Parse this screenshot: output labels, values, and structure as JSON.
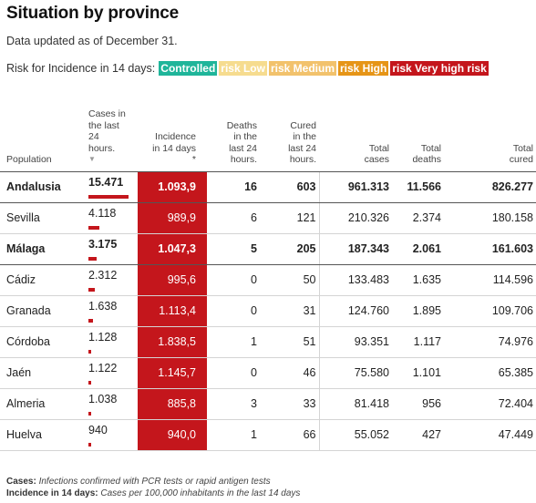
{
  "title": "Situation by province",
  "subtitle": "Data updated as of December 31.",
  "risk": {
    "label": "Risk for Incidence in 14 days:",
    "levels": [
      {
        "label": "Controlled",
        "color": "#1fb59a"
      },
      {
        "label": "risk Low",
        "color": "#f6dc8f"
      },
      {
        "label": "risk Medium",
        "color": "#f2c26c"
      },
      {
        "label": "risk High",
        "color": "#e69517"
      },
      {
        "label": "risk Very high risk",
        "color": "#c4161c"
      }
    ]
  },
  "headers": {
    "population": "Population",
    "cases": [
      "Cases in",
      "the last",
      "24",
      "hours."
    ],
    "cases_sort": "▼",
    "incidence": [
      "Incidence",
      "in 14 days"
    ],
    "incidence_star": "*",
    "deaths": [
      "Deaths",
      "in the",
      "last 24",
      "hours."
    ],
    "cured": [
      "Cured",
      "in the",
      "last 24",
      "hours."
    ],
    "total_cases": [
      "Total",
      "cases"
    ],
    "total_deaths": [
      "Total",
      "deaths"
    ],
    "total_cured": [
      "Total",
      "cured"
    ]
  },
  "accent_color": "#c4161c",
  "rows": [
    {
      "name": "Andalusia",
      "cases": "15.471",
      "cases_value": 15471,
      "incidence": "1.093,9",
      "deaths": "16",
      "cured": "603",
      "total_cases": "961.313",
      "total_deaths": "11.566",
      "total_cured": "826.277",
      "bold": true
    },
    {
      "name": "Sevilla",
      "cases": "4.118",
      "cases_value": 4118,
      "incidence": "989,9",
      "deaths": "6",
      "cured": "121",
      "total_cases": "210.326",
      "total_deaths": "2.374",
      "total_cured": "180.158",
      "bold": false
    },
    {
      "name": "Málaga",
      "cases": "3.175",
      "cases_value": 3175,
      "incidence": "1.047,3",
      "deaths": "5",
      "cured": "205",
      "total_cases": "187.343",
      "total_deaths": "2.061",
      "total_cured": "161.603",
      "bold": true
    },
    {
      "name": "Cádiz",
      "cases": "2.312",
      "cases_value": 2312,
      "incidence": "995,6",
      "deaths": "0",
      "cured": "50",
      "total_cases": "133.483",
      "total_deaths": "1.635",
      "total_cured": "114.596",
      "bold": false
    },
    {
      "name": "Granada",
      "cases": "1.638",
      "cases_value": 1638,
      "incidence": "1.113,4",
      "deaths": "0",
      "cured": "31",
      "total_cases": "124.760",
      "total_deaths": "1.895",
      "total_cured": "109.706",
      "bold": false
    },
    {
      "name": "Córdoba",
      "cases": "1.128",
      "cases_value": 1128,
      "incidence": "1.838,5",
      "deaths": "1",
      "cured": "51",
      "total_cases": "93.351",
      "total_deaths": "1.117",
      "total_cured": "74.976",
      "bold": false
    },
    {
      "name": "Jaén",
      "cases": "1.122",
      "cases_value": 1122,
      "incidence": "1.145,7",
      "deaths": "0",
      "cured": "46",
      "total_cases": "75.580",
      "total_deaths": "1.101",
      "total_cured": "65.385",
      "bold": false
    },
    {
      "name": "Almeria",
      "cases": "1.038",
      "cases_value": 1038,
      "incidence": "885,8",
      "deaths": "3",
      "cured": "33",
      "total_cases": "81.418",
      "total_deaths": "956",
      "total_cured": "72.404",
      "bold": false
    },
    {
      "name": "Huelva",
      "cases": "940",
      "cases_value": 940,
      "incidence": "940,0",
      "deaths": "1",
      "cured": "66",
      "total_cases": "55.052",
      "total_deaths": "427",
      "total_cured": "47.449",
      "bold": false
    }
  ],
  "footnotes": {
    "cases_label": "Cases:",
    "cases_text": "Infections confirmed with PCR tests or rapid antigen tests",
    "incidence_label": "Incidence in 14 days:",
    "incidence_text": "Cases per 100,000 inhabitants in the last 14 days"
  }
}
